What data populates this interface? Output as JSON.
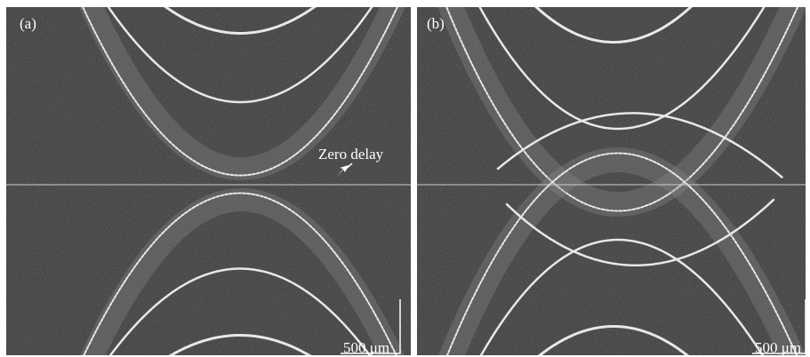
{
  "panels": [
    {
      "label": "(a)",
      "annotation": "Zero delay",
      "scale_bar": "500 μm"
    },
    {
      "label": "(b)",
      "scale_bar": "500 μm"
    }
  ]
}
